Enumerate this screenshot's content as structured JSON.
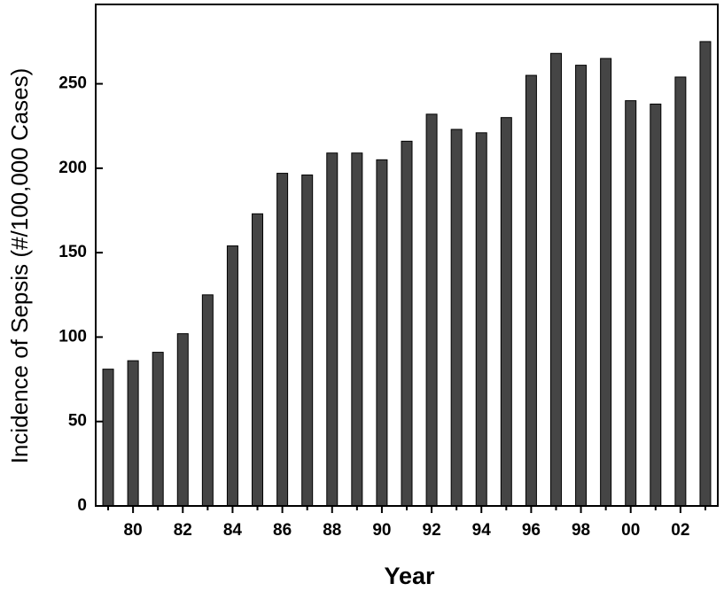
{
  "chart_data": {
    "type": "bar",
    "x_label": "Year",
    "y_label": "Incidence of Sepsis (#/100,000 Cases)",
    "categories": [
      null,
      "80",
      null,
      "82",
      null,
      "84",
      null,
      "86",
      null,
      "88",
      null,
      "90",
      null,
      "92",
      null,
      "94",
      null,
      "96",
      null,
      "98",
      null,
      "00",
      null,
      "02",
      null
    ],
    "values": [
      81,
      86,
      91,
      102,
      125,
      154,
      173,
      197,
      196,
      209,
      209,
      205,
      216,
      232,
      223,
      221,
      230,
      255,
      268,
      261,
      265,
      240,
      238,
      254,
      275
    ],
    "color": "#454545",
    "ylim": [
      0,
      297
    ],
    "yticks": [
      0,
      50,
      100,
      150,
      200,
      250
    ],
    "grid": false
  }
}
